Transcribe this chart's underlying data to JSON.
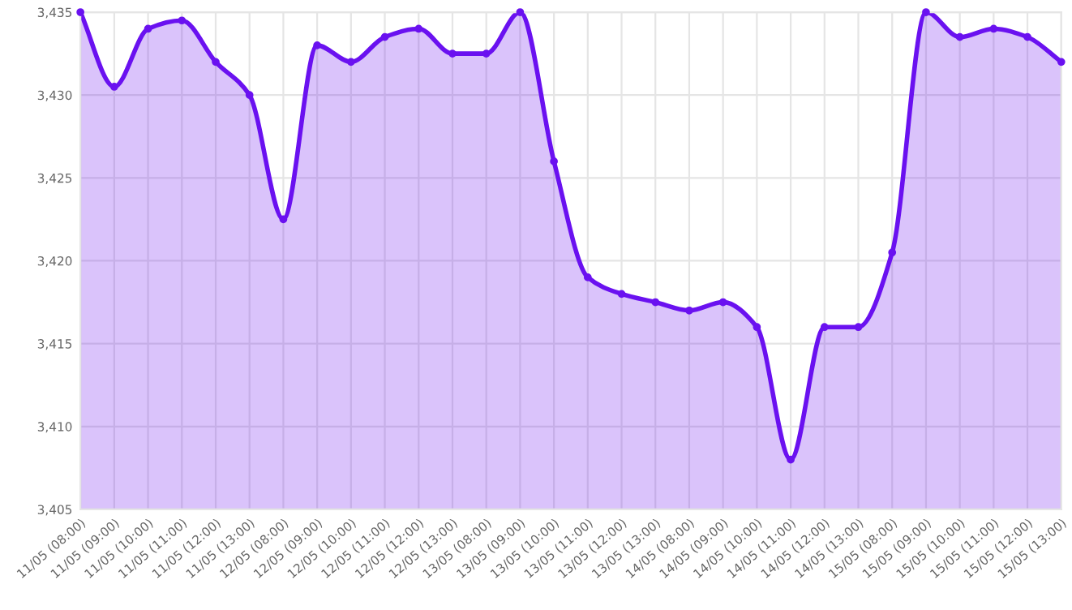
{
  "chart_data": {
    "type": "area",
    "categories": [
      "11/05 (08:00)",
      "11/05 (09:00)",
      "11/05 (10:00)",
      "11/05 (11:00)",
      "11/05 (12:00)",
      "11/05 (13:00)",
      "12/05 (08:00)",
      "12/05 (09:00)",
      "12/05 (10:00)",
      "12/05 (11:00)",
      "12/05 (12:00)",
      "12/05 (13:00)",
      "13/05 (08:00)",
      "13/05 (09:00)",
      "13/05 (10:00)",
      "13/05 (11:00)",
      "13/05 (12:00)",
      "13/05 (13:00)",
      "14/05 (08:00)",
      "14/05 (09:00)",
      "14/05 (10:00)",
      "14/05 (11:00)",
      "14/05 (12:00)",
      "14/05 (13:00)",
      "15/05 (08:00)",
      "15/05 (09:00)",
      "15/05 (10:00)",
      "15/05 (11:00)",
      "15/05 (12:00)",
      "15/05 (13:00)"
    ],
    "series": [
      {
        "color": "#6a11f0",
        "values": [
          3435,
          3430.5,
          3434,
          3434.5,
          3432,
          3430,
          3422.5,
          3433,
          3432,
          3433.5,
          3434,
          3432.5,
          3432.5,
          3435,
          3426,
          3419,
          3418,
          3417.5,
          3417,
          3417.5,
          3416,
          3408,
          3416,
          3416,
          3420.5,
          3435,
          3433.5,
          3434,
          3433.5,
          3432
        ]
      }
    ],
    "ylim": [
      3405,
      3435
    ],
    "yticks": [
      {
        "value": 3405,
        "label": "3,405"
      },
      {
        "value": 3410,
        "label": "3,410"
      },
      {
        "value": 3415,
        "label": "3,415"
      },
      {
        "value": 3420,
        "label": "3,420"
      },
      {
        "value": 3425,
        "label": "3,425"
      },
      {
        "value": 3430,
        "label": "3,430"
      },
      {
        "value": 3435,
        "label": "3,435"
      }
    ],
    "grid": true,
    "marker": "circle",
    "line_style": "solid"
  }
}
